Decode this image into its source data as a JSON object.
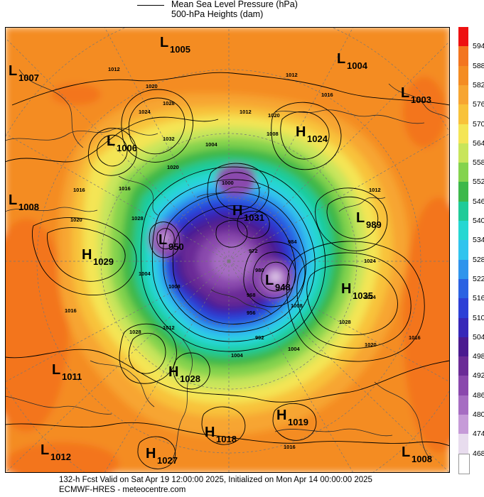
{
  "legend": {
    "mslp_label": "Mean Sea Level Pressure (hPa)",
    "heights_label": "500-hPa Heights (dam)"
  },
  "colorbar": {
    "levels": [
      {
        "value": "594",
        "color": "#ee1111"
      },
      {
        "value": "588",
        "color": "#f3751f"
      },
      {
        "value": "582",
        "color": "#f48c22"
      },
      {
        "value": "576",
        "color": "#f7a531"
      },
      {
        "value": "570",
        "color": "#f8c23a"
      },
      {
        "value": "564",
        "color": "#f4e555"
      },
      {
        "value": "558",
        "color": "#c8e55b"
      },
      {
        "value": "552",
        "color": "#84d34e"
      },
      {
        "value": "546",
        "color": "#3db84a"
      },
      {
        "value": "540",
        "color": "#1fcb98"
      },
      {
        "value": "534",
        "color": "#25d7d2"
      },
      {
        "value": "528",
        "color": "#30c4ee"
      },
      {
        "value": "522",
        "color": "#2f94ec"
      },
      {
        "value": "516",
        "color": "#2a62e2"
      },
      {
        "value": "510",
        "color": "#2c3fd6"
      },
      {
        "value": "504",
        "color": "#3727b8"
      },
      {
        "value": "498",
        "color": "#4b1a90"
      },
      {
        "value": "492",
        "color": "#6b2b97"
      },
      {
        "value": "486",
        "color": "#8a48ad"
      },
      {
        "value": "480",
        "color": "#a66dc2"
      },
      {
        "value": "474",
        "color": "#c69bd8"
      },
      {
        "value": "468",
        "color": "#e8dcee"
      }
    ],
    "bottom_color": "#ffffff"
  },
  "systems": [
    {
      "type": "L",
      "value": "1005"
    },
    {
      "type": "L",
      "value": "1007"
    },
    {
      "type": "L",
      "value": "1004"
    },
    {
      "type": "L",
      "value": "1003"
    },
    {
      "type": "L",
      "value": "1006"
    },
    {
      "type": "H",
      "value": "1024"
    },
    {
      "type": "L",
      "value": "1008"
    },
    {
      "type": "H",
      "value": "1031"
    },
    {
      "type": "L",
      "value": "989"
    },
    {
      "type": "L",
      "value": "950"
    },
    {
      "type": "H",
      "value": "1029"
    },
    {
      "type": "L",
      "value": "948"
    },
    {
      "type": "H",
      "value": "1035"
    },
    {
      "type": "L",
      "value": "1011"
    },
    {
      "type": "H",
      "value": "1028"
    },
    {
      "type": "H",
      "value": "1019"
    },
    {
      "type": "H",
      "value": "1018"
    },
    {
      "type": "L",
      "value": "1012"
    },
    {
      "type": "H",
      "value": "1027"
    },
    {
      "type": "L",
      "value": "1008"
    }
  ],
  "isobar_labels": [
    "1012",
    "1012",
    "1016",
    "1020",
    "1028",
    "1024",
    "1032",
    "1012",
    "1020",
    "1008",
    "1004",
    "1020",
    "1016",
    "1016",
    "1012",
    "1020",
    "1000",
    "1024",
    "1028",
    "1004",
    "972",
    "984",
    "1024",
    "1028",
    "1016",
    "1020",
    "1012",
    "1016",
    "1028",
    "1004",
    "1008",
    "992",
    "1004",
    "1008",
    "956",
    "968",
    "980",
    "1016"
  ],
  "footer": {
    "line1": "132-h Fcst Valid on Sat Apr 19 12:00:00 2025, Initialized on Mon Apr 14 00:00:00 2025",
    "line2": "ECMWF-HRES  - meteocentre.com"
  }
}
